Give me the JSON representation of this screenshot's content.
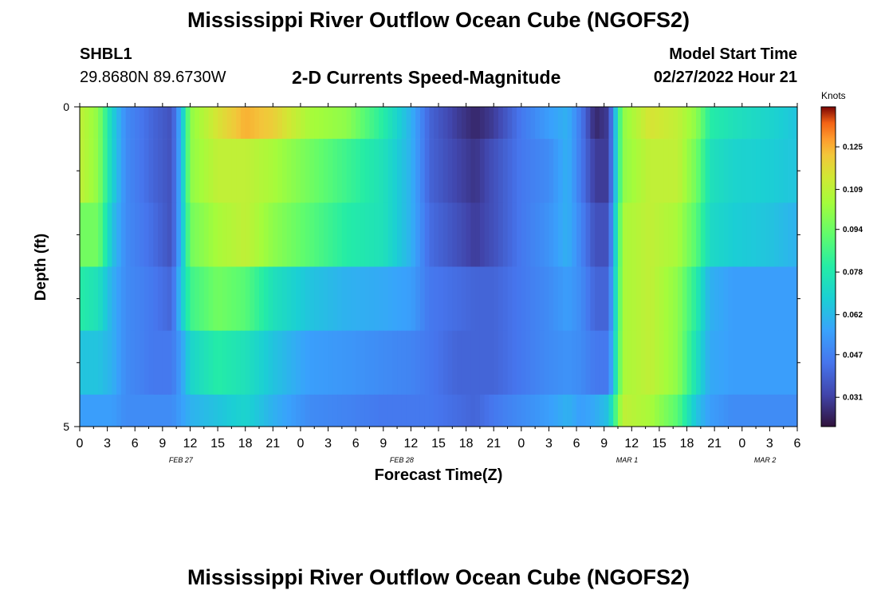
{
  "figure": {
    "title": "Mississippi River Outflow Ocean Cube (NGOFS2)",
    "station": "SHBL1",
    "coordinates": "29.8680N  89.6730W",
    "subtitle": "2-D Currents Speed-Magnitude",
    "model_start_label": "Model Start Time",
    "model_start_value": "02/27/2022 Hour 21",
    "title_repeat": "Mississippi River Outflow Ocean Cube (NGOFS2)"
  },
  "chart_data": {
    "type": "heatmap",
    "title": "2-D Currents Speed-Magnitude",
    "xlabel": "Forecast Time(Z)",
    "ylabel": "Depth (ft)",
    "ylim": [
      0,
      5
    ],
    "y_ticks": [
      0,
      5
    ],
    "x_tick_labels": [
      "0",
      "3",
      "6",
      "9",
      "12",
      "15",
      "18",
      "21",
      "0",
      "3",
      "6",
      "9",
      "12",
      "15",
      "18",
      "21",
      "0",
      "3",
      "6",
      "9",
      "12",
      "15",
      "18",
      "21",
      "0",
      "3",
      "6"
    ],
    "date_labels": [
      {
        "label": "FEB 27",
        "x_hour": 11
      },
      {
        "label": "FEB 28",
        "x_hour": 35
      },
      {
        "label": "MAR 1",
        "x_hour": 59.5
      },
      {
        "label": "MAR 2",
        "x_hour": 74.5
      }
    ],
    "x_range_hours": [
      0,
      78
    ],
    "depth_bands": [
      [
        0,
        0.5
      ],
      [
        0.5,
        1.5
      ],
      [
        1.5,
        2.5
      ],
      [
        2.5,
        3.5
      ],
      [
        3.5,
        4.5
      ],
      [
        4.5,
        5
      ]
    ],
    "colorbar": {
      "label": "Knots",
      "ticks": [
        0.031,
        0.047,
        0.062,
        0.078,
        0.094,
        0.109,
        0.125
      ],
      "range": [
        0.02,
        0.14
      ]
    },
    "series": [
      {
        "values": [
          [
            0,
            0.11
          ],
          [
            2,
            0.1
          ],
          [
            3.5,
            0.07
          ],
          [
            5,
            0.05
          ],
          [
            8,
            0.04
          ],
          [
            10,
            0.035
          ],
          [
            11,
            0.06
          ],
          [
            12,
            0.1
          ],
          [
            15,
            0.115
          ],
          [
            18,
            0.125
          ],
          [
            21,
            0.12
          ],
          [
            25,
            0.105
          ],
          [
            29,
            0.1
          ],
          [
            33,
            0.08
          ],
          [
            36,
            0.06
          ],
          [
            38,
            0.04
          ],
          [
            41,
            0.03
          ],
          [
            43,
            0.025
          ],
          [
            45,
            0.03
          ],
          [
            48,
            0.045
          ],
          [
            51,
            0.055
          ],
          [
            53,
            0.06
          ],
          [
            54.5,
            0.045
          ],
          [
            56,
            0.025
          ],
          [
            57.5,
            0.03
          ],
          [
            59,
            0.1
          ],
          [
            62,
            0.115
          ],
          [
            65,
            0.11
          ],
          [
            67,
            0.1
          ],
          [
            68.5,
            0.08
          ],
          [
            71,
            0.075
          ],
          [
            75,
            0.07
          ],
          [
            78,
            0.065
          ]
        ]
      },
      {
        "values": [
          [
            0,
            0.11
          ],
          [
            2,
            0.1
          ],
          [
            3.5,
            0.07
          ],
          [
            5,
            0.05
          ],
          [
            8,
            0.04
          ],
          [
            10,
            0.035
          ],
          [
            11,
            0.06
          ],
          [
            12,
            0.1
          ],
          [
            15,
            0.11
          ],
          [
            18,
            0.11
          ],
          [
            21,
            0.105
          ],
          [
            25,
            0.095
          ],
          [
            29,
            0.085
          ],
          [
            33,
            0.075
          ],
          [
            36,
            0.06
          ],
          [
            38,
            0.04
          ],
          [
            41,
            0.032
          ],
          [
            43,
            0.028
          ],
          [
            45,
            0.035
          ],
          [
            48,
            0.045
          ],
          [
            51,
            0.05
          ],
          [
            53,
            0.06
          ],
          [
            54.5,
            0.045
          ],
          [
            56,
            0.03
          ],
          [
            57.5,
            0.03
          ],
          [
            59,
            0.1
          ],
          [
            62,
            0.11
          ],
          [
            65,
            0.11
          ],
          [
            67,
            0.095
          ],
          [
            68.5,
            0.075
          ],
          [
            71,
            0.07
          ],
          [
            75,
            0.068
          ],
          [
            78,
            0.065
          ]
        ]
      },
      {
        "values": [
          [
            0,
            0.095
          ],
          [
            2,
            0.095
          ],
          [
            3.5,
            0.065
          ],
          [
            5,
            0.05
          ],
          [
            8,
            0.042
          ],
          [
            10,
            0.035
          ],
          [
            11,
            0.06
          ],
          [
            12,
            0.095
          ],
          [
            15,
            0.105
          ],
          [
            18,
            0.11
          ],
          [
            21,
            0.1
          ],
          [
            25,
            0.09
          ],
          [
            29,
            0.08
          ],
          [
            33,
            0.075
          ],
          [
            36,
            0.06
          ],
          [
            38,
            0.042
          ],
          [
            41,
            0.035
          ],
          [
            43,
            0.03
          ],
          [
            45,
            0.035
          ],
          [
            48,
            0.045
          ],
          [
            51,
            0.052
          ],
          [
            53,
            0.06
          ],
          [
            54.5,
            0.048
          ],
          [
            56,
            0.035
          ],
          [
            57.5,
            0.035
          ],
          [
            59,
            0.105
          ],
          [
            62,
            0.11
          ],
          [
            65,
            0.105
          ],
          [
            67,
            0.09
          ],
          [
            68.5,
            0.072
          ],
          [
            71,
            0.068
          ],
          [
            75,
            0.065
          ],
          [
            78,
            0.06
          ]
        ]
      },
      {
        "values": [
          [
            0,
            0.08
          ],
          [
            2,
            0.075
          ],
          [
            3.5,
            0.06
          ],
          [
            5,
            0.05
          ],
          [
            8,
            0.045
          ],
          [
            10,
            0.04
          ],
          [
            11,
            0.065
          ],
          [
            12,
            0.085
          ],
          [
            15,
            0.095
          ],
          [
            18,
            0.09
          ],
          [
            21,
            0.075
          ],
          [
            25,
            0.065
          ],
          [
            29,
            0.06
          ],
          [
            33,
            0.058
          ],
          [
            36,
            0.055
          ],
          [
            38,
            0.045
          ],
          [
            41,
            0.042
          ],
          [
            43,
            0.04
          ],
          [
            45,
            0.04
          ],
          [
            48,
            0.045
          ],
          [
            51,
            0.05
          ],
          [
            53,
            0.055
          ],
          [
            54.5,
            0.05
          ],
          [
            56,
            0.04
          ],
          [
            57.5,
            0.04
          ],
          [
            59,
            0.105
          ],
          [
            62,
            0.11
          ],
          [
            65,
            0.1
          ],
          [
            67,
            0.08
          ],
          [
            68.5,
            0.06
          ],
          [
            71,
            0.055
          ],
          [
            75,
            0.055
          ],
          [
            78,
            0.055
          ]
        ]
      },
      {
        "values": [
          [
            0,
            0.065
          ],
          [
            2,
            0.065
          ],
          [
            3.5,
            0.06
          ],
          [
            5,
            0.05
          ],
          [
            8,
            0.045
          ],
          [
            10,
            0.045
          ],
          [
            11,
            0.055
          ],
          [
            12,
            0.07
          ],
          [
            15,
            0.08
          ],
          [
            18,
            0.075
          ],
          [
            21,
            0.065
          ],
          [
            25,
            0.055
          ],
          [
            29,
            0.053
          ],
          [
            33,
            0.05
          ],
          [
            36,
            0.048
          ],
          [
            38,
            0.045
          ],
          [
            41,
            0.04
          ],
          [
            43,
            0.04
          ],
          [
            45,
            0.04
          ],
          [
            48,
            0.045
          ],
          [
            51,
            0.05
          ],
          [
            53,
            0.052
          ],
          [
            54.5,
            0.05
          ],
          [
            56,
            0.045
          ],
          [
            57.5,
            0.045
          ],
          [
            59,
            0.105
          ],
          [
            62,
            0.11
          ],
          [
            65,
            0.1
          ],
          [
            67,
            0.075
          ],
          [
            68.5,
            0.058
          ],
          [
            71,
            0.055
          ],
          [
            75,
            0.055
          ],
          [
            78,
            0.055
          ]
        ]
      },
      {
        "values": [
          [
            0,
            0.055
          ],
          [
            2,
            0.055
          ],
          [
            3.5,
            0.055
          ],
          [
            5,
            0.05
          ],
          [
            8,
            0.05
          ],
          [
            10,
            0.05
          ],
          [
            11,
            0.055
          ],
          [
            12,
            0.06
          ],
          [
            15,
            0.065
          ],
          [
            18,
            0.07
          ],
          [
            21,
            0.06
          ],
          [
            25,
            0.05
          ],
          [
            29,
            0.048
          ],
          [
            33,
            0.045
          ],
          [
            36,
            0.045
          ],
          [
            38,
            0.045
          ],
          [
            41,
            0.042
          ],
          [
            43,
            0.04
          ],
          [
            45,
            0.045
          ],
          [
            48,
            0.05
          ],
          [
            51,
            0.055
          ],
          [
            53,
            0.06
          ],
          [
            54.5,
            0.055
          ],
          [
            56,
            0.058
          ],
          [
            57.5,
            0.065
          ],
          [
            59,
            0.11
          ],
          [
            62,
            0.105
          ],
          [
            65,
            0.09
          ],
          [
            67,
            0.065
          ],
          [
            68.5,
            0.055
          ],
          [
            71,
            0.05
          ],
          [
            75,
            0.05
          ],
          [
            78,
            0.05
          ]
        ]
      }
    ]
  }
}
